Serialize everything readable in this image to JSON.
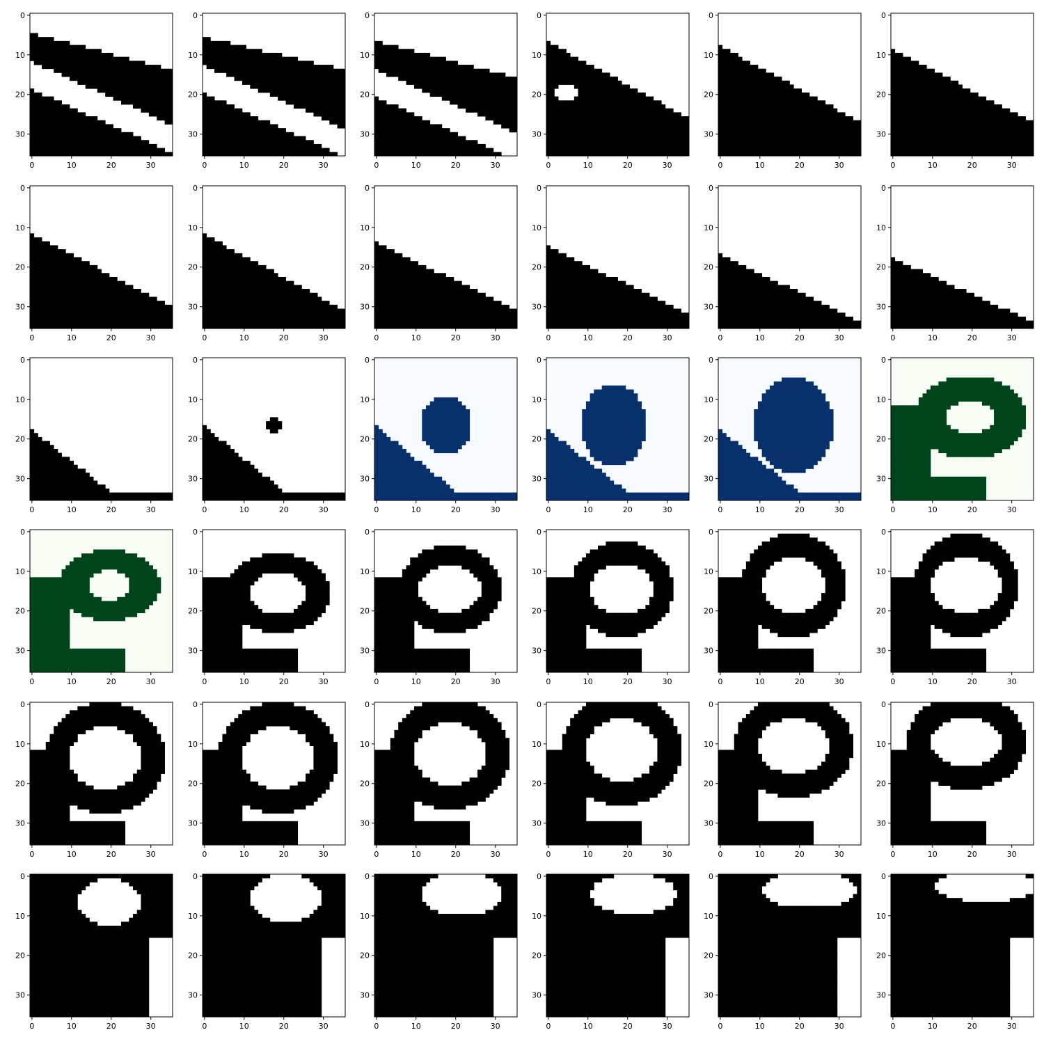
{
  "chart_data": {
    "type": "heatmap",
    "layout": {
      "rows": 6,
      "cols": 6
    },
    "axes": {
      "xlim": [
        -0.5,
        35.5
      ],
      "ylim": [
        35.5,
        -0.5
      ],
      "xticks": [
        0,
        10,
        20,
        30
      ],
      "yticks": [
        0,
        10,
        20,
        30
      ]
    },
    "colormaps": {
      "gray": [
        "#000000",
        "#ffffff"
      ],
      "blue": [
        "#08306b",
        "#f7fbff"
      ],
      "green": [
        "#00441b",
        "#f7fcf5"
      ]
    },
    "panels": [
      {
        "cmap": "gray",
        "shape": "stripe",
        "edge": [
          5,
          14
        ],
        "band": [
          24,
          36
        ],
        "band2": [
          20,
          28
        ]
      },
      {
        "cmap": "gray",
        "shape": "stripe",
        "edge": [
          6,
          14
        ],
        "band": [
          23,
          35
        ],
        "band2": [
          19,
          27
        ]
      },
      {
        "cmap": "gray",
        "shape": "stripe",
        "edge": [
          7,
          16
        ],
        "band": [
          22,
          34
        ],
        "band2": [
          25,
          30
        ]
      },
      {
        "cmap": "gray",
        "shape": "edge",
        "edge": [
          7,
          26
        ],
        "hole": [
          5,
          20,
          3,
          2
        ]
      },
      {
        "cmap": "gray",
        "shape": "edge",
        "edge": [
          8,
          27
        ]
      },
      {
        "cmap": "gray",
        "shape": "edge",
        "edge": [
          9,
          27
        ]
      },
      {
        "cmap": "gray",
        "shape": "edge",
        "edge": [
          12,
          30
        ]
      },
      {
        "cmap": "gray",
        "shape": "edge",
        "edge": [
          12,
          31
        ]
      },
      {
        "cmap": "gray",
        "shape": "edge",
        "edge": [
          14,
          31
        ]
      },
      {
        "cmap": "gray",
        "shape": "edge",
        "edge": [
          15,
          32
        ]
      },
      {
        "cmap": "gray",
        "shape": "edge",
        "edge": [
          17,
          34
        ]
      },
      {
        "cmap": "gray",
        "shape": "edge",
        "edge": [
          18,
          34
        ]
      },
      {
        "cmap": "gray",
        "shape": "corner",
        "corner": [
          18,
          35
        ]
      },
      {
        "cmap": "gray",
        "shape": "corner",
        "corner": [
          17,
          35
        ],
        "blob": [
          18,
          17,
          2.2,
          1.6
        ]
      },
      {
        "cmap": "blue",
        "shape": "corner",
        "corner": [
          17,
          35
        ],
        "blob": [
          18,
          17,
          6.5,
          7.5
        ]
      },
      {
        "cmap": "blue",
        "shape": "corner",
        "corner": [
          18,
          35
        ],
        "blob": [
          17,
          17,
          8,
          10.5
        ]
      },
      {
        "cmap": "blue",
        "shape": "corner",
        "corner": [
          18,
          35
        ],
        "blob": [
          19,
          17,
          10,
          12
        ]
      },
      {
        "cmap": "green",
        "shape": "loop",
        "loop": [
          20,
          15,
          14,
          10.5
        ],
        "hole": [
          20,
          15,
          6.5,
          4
        ]
      },
      {
        "cmap": "green",
        "shape": "loop",
        "loop": [
          20,
          14,
          13,
          9
        ],
        "hole": [
          20,
          14,
          5,
          4
        ]
      },
      {
        "cmap": "gray",
        "shape": "loop",
        "loop": [
          19,
          16,
          13,
          10
        ],
        "hole": [
          19,
          16,
          7,
          5.5
        ]
      },
      {
        "cmap": "gray",
        "shape": "loop",
        "loop": [
          19,
          15,
          13,
          11
        ],
        "hole": [
          19,
          15,
          8,
          6
        ]
      },
      {
        "cmap": "gray",
        "shape": "loop",
        "loop": [
          19,
          15,
          13,
          12
        ],
        "hole": [
          19,
          15,
          8,
          6.5
        ]
      },
      {
        "cmap": "gray",
        "shape": "loop",
        "loop": [
          19,
          14,
          13,
          13
        ],
        "hole": [
          19,
          14,
          8,
          7
        ]
      },
      {
        "cmap": "gray",
        "shape": "loop",
        "loop": [
          19,
          14,
          13,
          13
        ],
        "hole": [
          19,
          14,
          9,
          7
        ]
      },
      {
        "cmap": "gray",
        "shape": "loop",
        "loop": [
          19,
          14,
          15,
          14
        ],
        "hole": [
          19,
          14,
          9,
          8
        ]
      },
      {
        "cmap": "gray",
        "shape": "loop",
        "loop": [
          19,
          14,
          15,
          14
        ],
        "hole": [
          19,
          14,
          9,
          8
        ]
      },
      {
        "cmap": "gray",
        "shape": "loop",
        "loop": [
          19,
          13,
          15,
          14
        ],
        "hole": [
          19,
          13,
          9,
          8
        ]
      },
      {
        "cmap": "gray",
        "shape": "loop",
        "loop": [
          19,
          12,
          15,
          14
        ],
        "hole": [
          19,
          12,
          9,
          8
        ]
      },
      {
        "cmap": "gray",
        "shape": "loop",
        "loop": [
          19,
          11,
          15,
          13
        ],
        "hole": [
          19,
          11,
          9,
          7
        ]
      },
      {
        "cmap": "gray",
        "shape": "loop",
        "loop": [
          19,
          10,
          15,
          12
        ],
        "hole": [
          19,
          10,
          9,
          6
        ]
      },
      {
        "cmap": "gray",
        "shape": "oval",
        "hole": [
          20,
          7,
          8,
          6
        ]
      },
      {
        "cmap": "gray",
        "shape": "oval",
        "hole": [
          21,
          6,
          9,
          6
        ]
      },
      {
        "cmap": "gray",
        "shape": "oval",
        "hole": [
          22,
          5,
          10,
          5.5
        ]
      },
      {
        "cmap": "gray",
        "shape": "oval",
        "hole": [
          22,
          5,
          11,
          5
        ]
      },
      {
        "cmap": "gray",
        "shape": "oval",
        "hole": [
          23,
          4,
          12,
          4.5
        ]
      },
      {
        "cmap": "gray",
        "shape": "oval",
        "hole": [
          24,
          3,
          13,
          4
        ]
      }
    ]
  }
}
